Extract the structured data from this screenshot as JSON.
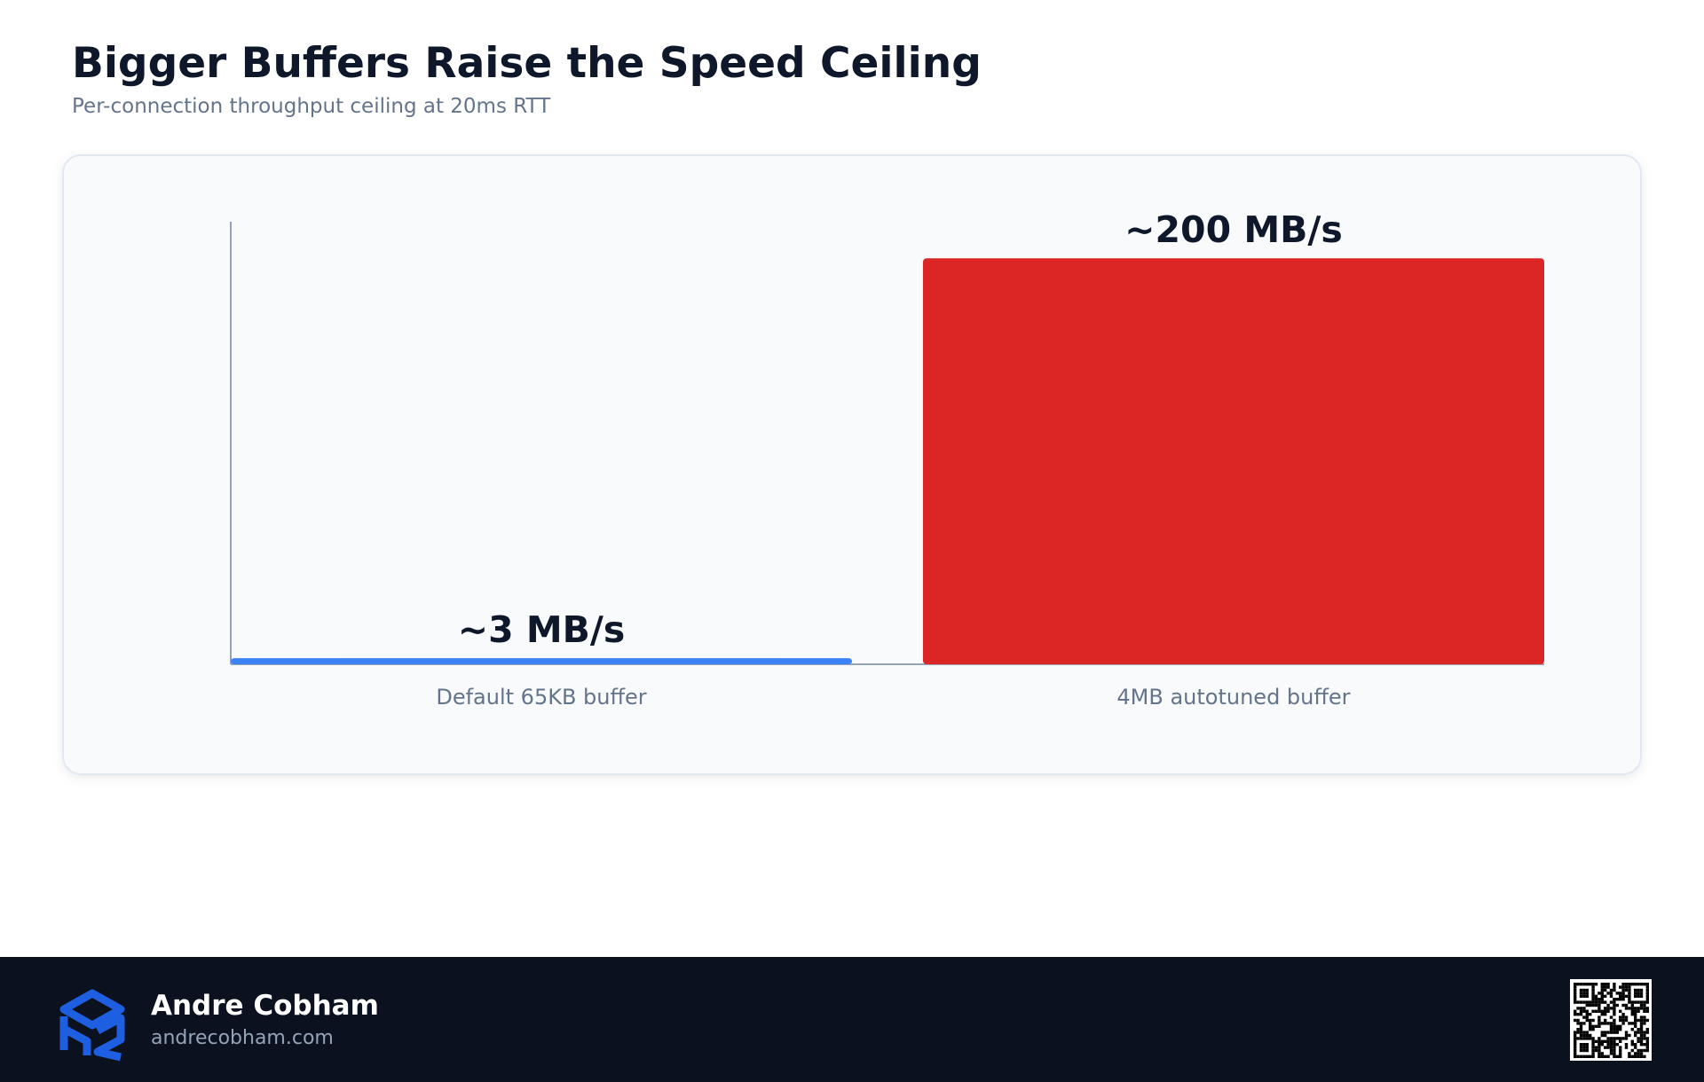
{
  "chart_data": {
    "type": "bar",
    "title": "Bigger Buffers Raise the Speed Ceiling",
    "subtitle": "Per-connection throughput ceiling at 20ms RTT",
    "categories": [
      "Default 65KB buffer",
      "4MB autotuned buffer"
    ],
    "values": [
      3,
      200
    ],
    "value_labels": [
      "~3 MB/s",
      "~200 MB/s"
    ],
    "colors": [
      "#3b82f6",
      "#dc2626"
    ],
    "ylim": [
      0,
      218
    ]
  },
  "footer": {
    "name": "Andre Cobham",
    "url": "andrecobham.com"
  }
}
